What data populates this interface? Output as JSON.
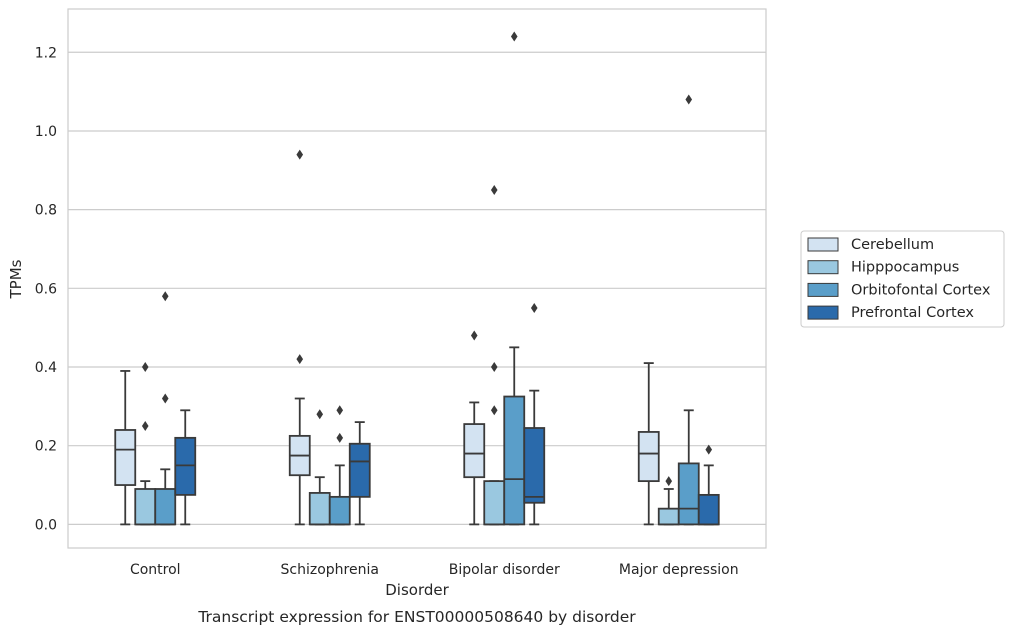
{
  "chart_data": {
    "type": "boxplot",
    "title": "Transcript expression for ENST00000508640 by disorder",
    "xlabel": "Disorder",
    "ylabel": "TPMs",
    "ylim": [
      -0.06,
      1.31
    ],
    "yticks": [
      "0.0",
      "0.2",
      "0.4",
      "0.6",
      "0.8",
      "1.0",
      "1.2"
    ],
    "grid": "horizontal",
    "legend_position": "right",
    "categories": [
      "Control",
      "Schizophrenia",
      "Bipolar disorder",
      "Major depression"
    ],
    "series": [
      {
        "name": "Cerebellum",
        "color": "#d3e3f2",
        "boxes": [
          {
            "whislo": 0.0,
            "q1": 0.1,
            "med": 0.19,
            "q3": 0.24,
            "whishi": 0.39,
            "fliers": []
          },
          {
            "whislo": 0.0,
            "q1": 0.125,
            "med": 0.175,
            "q3": 0.225,
            "whishi": 0.32,
            "fliers": [
              0.42,
              0.94
            ]
          },
          {
            "whislo": 0.0,
            "q1": 0.12,
            "med": 0.18,
            "q3": 0.255,
            "whishi": 0.31,
            "fliers": [
              0.48
            ]
          },
          {
            "whislo": 0.0,
            "q1": 0.11,
            "med": 0.18,
            "q3": 0.235,
            "whishi": 0.41,
            "fliers": []
          }
        ]
      },
      {
        "name": "Hipppocampus",
        "color": "#9ac8e0",
        "boxes": [
          {
            "whislo": 0.0,
            "q1": 0.0,
            "med": 0.0,
            "q3": 0.09,
            "whishi": 0.11,
            "fliers": [
              0.25,
              0.4
            ]
          },
          {
            "whislo": 0.0,
            "q1": 0.0,
            "med": 0.0,
            "q3": 0.08,
            "whishi": 0.12,
            "fliers": [
              0.28
            ]
          },
          {
            "whislo": 0.0,
            "q1": 0.0,
            "med": 0.0,
            "q3": 0.11,
            "whishi": 0.11,
            "fliers": [
              0.29,
              0.4,
              0.85
            ]
          },
          {
            "whislo": 0.0,
            "q1": 0.0,
            "med": 0.0,
            "q3": 0.04,
            "whishi": 0.09,
            "fliers": [
              0.11
            ]
          }
        ]
      },
      {
        "name": "Orbitofontal Cortex",
        "color": "#5a9ec9",
        "boxes": [
          {
            "whislo": 0.0,
            "q1": 0.0,
            "med": 0.0,
            "q3": 0.09,
            "whishi": 0.14,
            "fliers": [
              0.32,
              0.58
            ]
          },
          {
            "whislo": 0.0,
            "q1": 0.0,
            "med": 0.0,
            "q3": 0.07,
            "whishi": 0.15,
            "fliers": [
              0.22,
              0.29
            ]
          },
          {
            "whislo": 0.0,
            "q1": 0.0,
            "med": 0.115,
            "q3": 0.325,
            "whishi": 0.45,
            "fliers": [
              1.24
            ]
          },
          {
            "whislo": 0.0,
            "q1": 0.0,
            "med": 0.04,
            "q3": 0.155,
            "whishi": 0.29,
            "fliers": [
              1.08
            ]
          }
        ]
      },
      {
        "name": "Prefrontal Cortex",
        "color": "#2a6aab",
        "boxes": [
          {
            "whislo": 0.0,
            "q1": 0.075,
            "med": 0.15,
            "q3": 0.22,
            "whishi": 0.29,
            "fliers": []
          },
          {
            "whislo": 0.0,
            "q1": 0.07,
            "med": 0.16,
            "q3": 0.205,
            "whishi": 0.26,
            "fliers": []
          },
          {
            "whislo": 0.0,
            "q1": 0.055,
            "med": 0.07,
            "q3": 0.245,
            "whishi": 0.34,
            "fliers": [
              0.55
            ]
          },
          {
            "whislo": 0.0,
            "q1": 0.0,
            "med": 0.0,
            "q3": 0.075,
            "whishi": 0.15,
            "fliers": [
              0.19
            ]
          }
        ]
      }
    ]
  }
}
